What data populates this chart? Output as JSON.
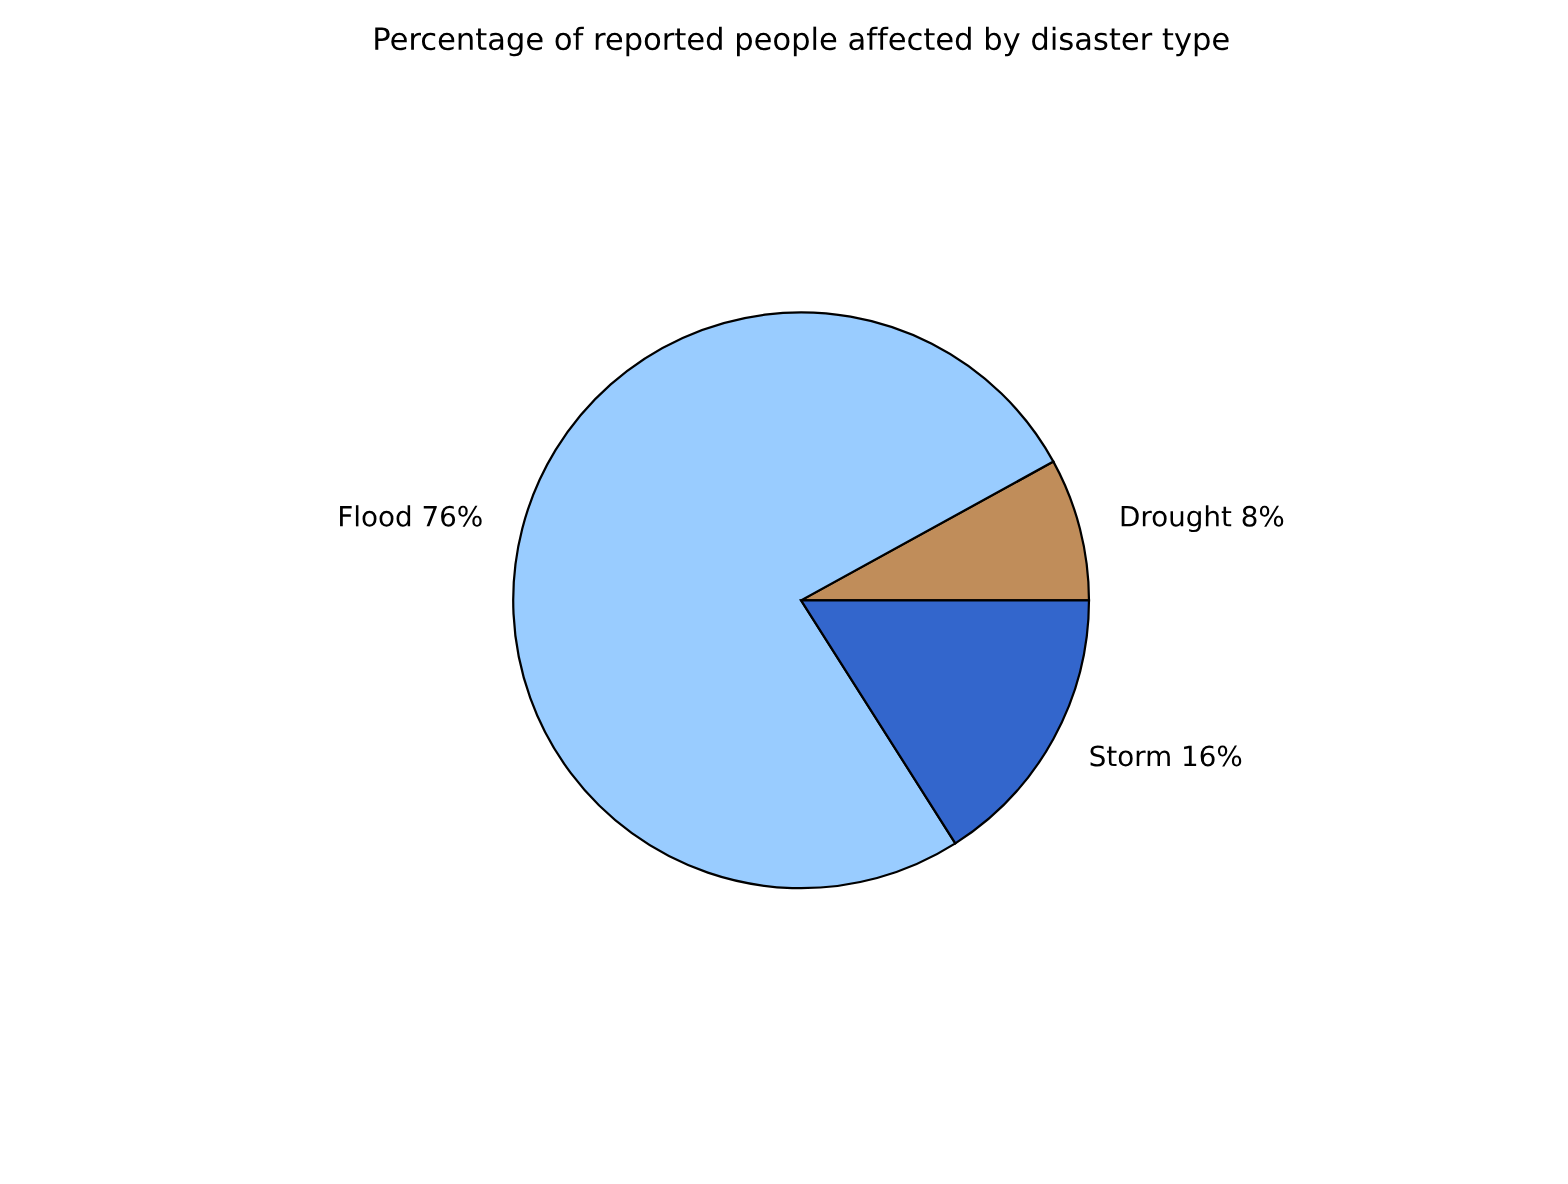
{
  "chart_data": {
    "type": "pie",
    "title": "Percentage of reported people affected by disaster type",
    "categories": [
      "Drought",
      "Flood",
      "Storm"
    ],
    "values": [
      8,
      76,
      16
    ],
    "value_labels": [
      "8%",
      "76%",
      "16%"
    ],
    "colors": [
      "#c08d5a",
      "#99ccff",
      "#3366cc"
    ]
  }
}
